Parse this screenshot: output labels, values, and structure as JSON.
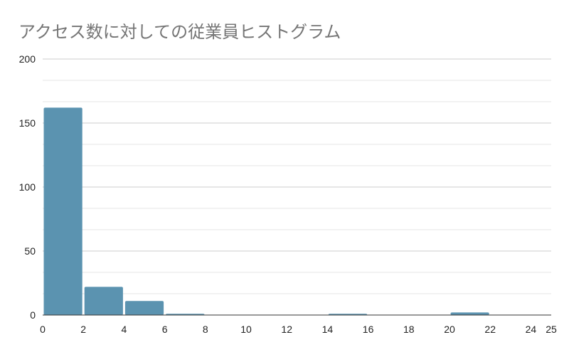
{
  "chart_data": {
    "type": "bar",
    "subtype": "histogram",
    "title": "アクセス数に対しての従業員ヒストグラム",
    "xlabel": "",
    "ylabel": "",
    "bins": [
      {
        "start": 0,
        "end": 2,
        "value": 162
      },
      {
        "start": 2,
        "end": 4,
        "value": 22
      },
      {
        "start": 4,
        "end": 6,
        "value": 11
      },
      {
        "start": 6,
        "end": 8,
        "value": 1
      },
      {
        "start": 8,
        "end": 10,
        "value": 0
      },
      {
        "start": 10,
        "end": 12,
        "value": 0
      },
      {
        "start": 12,
        "end": 14,
        "value": 0
      },
      {
        "start": 14,
        "end": 16,
        "value": 1
      },
      {
        "start": 16,
        "end": 18,
        "value": 0
      },
      {
        "start": 18,
        "end": 20,
        "value": 0
      },
      {
        "start": 20,
        "end": 22,
        "value": 2
      },
      {
        "start": 22,
        "end": 24,
        "value": 0
      }
    ],
    "xlim": [
      0,
      25
    ],
    "ylim": [
      0,
      200
    ],
    "x_ticks": [
      "0",
      "2",
      "4",
      "6",
      "8",
      "10",
      "12",
      "14",
      "16",
      "18",
      "20",
      "22",
      "24",
      "25"
    ],
    "y_ticks": [
      "0",
      "50",
      "100",
      "150",
      "200"
    ],
    "grid": true,
    "bar_color": "#5b93b0",
    "grid_color": "#cccccc",
    "minor_grid_color": "#e6e6e6"
  }
}
